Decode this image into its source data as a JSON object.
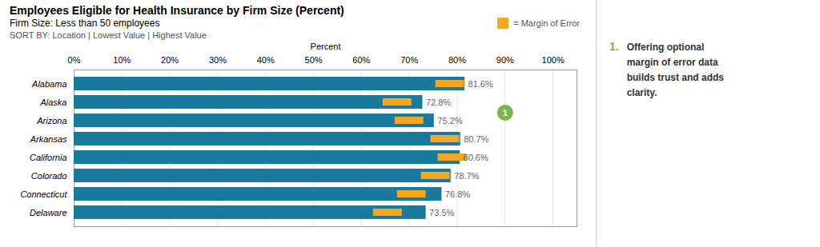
{
  "chart_data": {
    "type": "bar",
    "orientation": "horizontal",
    "title": "Employees Eligible for Health Insurance by Firm Size (Percent)",
    "subtitle": "Firm Size: Less than 50 employees",
    "sort_by": "SORT BY: Location | Lowest Value | Highest Value",
    "xlabel": "Percent",
    "categories": [
      "Alabama",
      "Alaska",
      "Arizona",
      "Arkansas",
      "California",
      "Colorado",
      "Connecticut",
      "Delaware"
    ],
    "values": [
      81.6,
      72.8,
      75.2,
      80.7,
      80.6,
      78.7,
      76.8,
      73.5
    ],
    "value_labels": [
      "81.6%",
      "72.8%",
      "75.2%",
      "80.7%",
      "80.6%",
      "78.7%",
      "76.8%",
      "73.5%"
    ],
    "data_labels": true,
    "color": "#1a7a9e",
    "xlim": [
      0,
      105
    ],
    "xticks": [
      {
        "value": 0,
        "label": "0%"
      },
      {
        "value": 10,
        "label": "10%"
      },
      {
        "value": 20,
        "label": "20%"
      },
      {
        "value": 30,
        "label": "30%"
      },
      {
        "value": 40,
        "label": "40%"
      },
      {
        "value": 50,
        "label": "50%"
      },
      {
        "value": 60,
        "label": "60%"
      },
      {
        "value": 70,
        "label": "70%"
      },
      {
        "value": 80,
        "label": "80%"
      },
      {
        "value": 90,
        "label": "90%"
      },
      {
        "value": 100,
        "label": "100%"
      }
    ],
    "grid": true,
    "margin_of_error": {
      "name": "= Margin of Error",
      "color": "#f5a623",
      "ranges": [
        [
          75.5,
          81.5
        ],
        [
          64.5,
          70.5
        ],
        [
          67.0,
          73.0
        ],
        [
          74.5,
          80.5
        ],
        [
          76.0,
          82.0
        ],
        [
          72.5,
          78.5
        ],
        [
          67.5,
          73.5
        ],
        [
          62.5,
          68.5
        ]
      ]
    },
    "legend": "top-right",
    "annotations": [
      {
        "text": "1",
        "x": 90,
        "category": "Alaska",
        "color": "#7ab648"
      }
    ],
    "note": {
      "number": "1.",
      "text": "Offering optional\nmargin of error data\nbuilds trust and adds\nclarity.",
      "color": "#7ab648"
    }
  }
}
